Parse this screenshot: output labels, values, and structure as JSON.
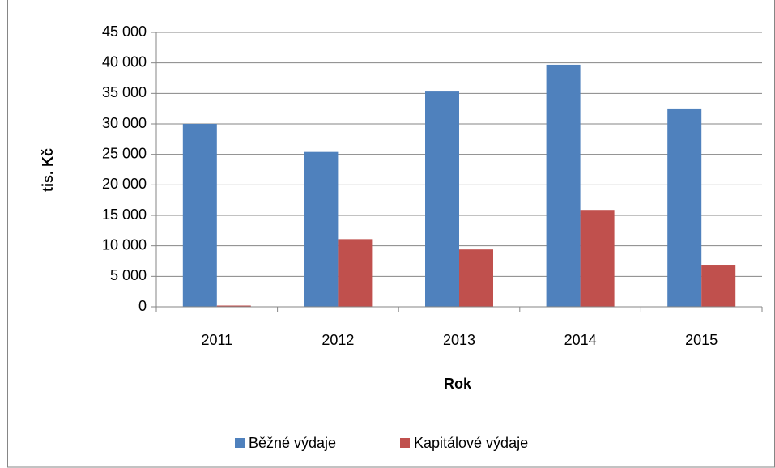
{
  "chart_data": {
    "type": "bar",
    "categories": [
      "2011",
      "2012",
      "2013",
      "2014",
      "2015"
    ],
    "series": [
      {
        "name": "Běžné výdaje",
        "color": "#4f81bd",
        "values": [
          30000,
          25400,
          35300,
          39700,
          32400
        ]
      },
      {
        "name": "Kapitálové výdaje",
        "color": "#c0504d",
        "values": [
          200,
          11100,
          9400,
          15900,
          6900
        ]
      }
    ],
    "ylim": [
      0,
      45000
    ],
    "yticks": [
      0,
      {
        "value": 5000,
        "label": "5 000"
      },
      {
        "value": 10000,
        "label": "10 000"
      },
      {
        "value": 15000,
        "label": "15 000"
      },
      {
        "value": 20000,
        "label": "20 000"
      },
      {
        "value": 25000,
        "label": "25 000"
      },
      {
        "value": 30000,
        "label": "30 000"
      },
      {
        "value": 35000,
        "label": "35 000"
      },
      {
        "value": 40000,
        "label": "40 000"
      },
      {
        "value": 45000,
        "label": "45 000"
      }
    ],
    "xlabel": "Rok",
    "ylabel": "tis. Kč",
    "grid": true,
    "legend": "bottom"
  }
}
